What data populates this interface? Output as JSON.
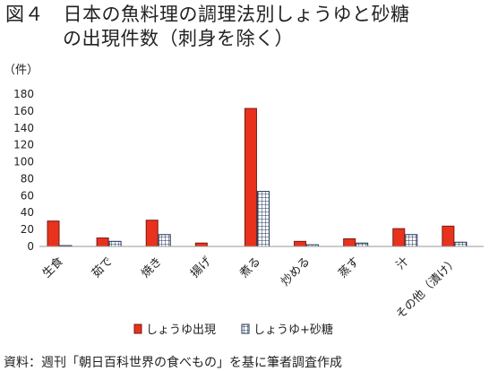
{
  "title_lines": [
    "図４　日本の魚料理の調理法別しょうゆと砂糖",
    "の出現件数（刺身を除く）"
  ],
  "source_note": "資料：週刊「朝日百科世界の食べもの」を基に筆者調査作成",
  "chart_data": {
    "type": "bar",
    "unit": "（件）",
    "categories": [
      "生食",
      "茹で",
      "焼き",
      "揚げ",
      "煮る",
      "炒める",
      "蒸す",
      "汁",
      "その他（漬け）"
    ],
    "series": [
      {
        "name": "しょうゆ出現",
        "color": "#e8321e",
        "pattern": "solid",
        "values": [
          30,
          10,
          31,
          4,
          163,
          6,
          9,
          21,
          24
        ]
      },
      {
        "name": "しょうゆ+砂糖",
        "color": "#1d3557",
        "pattern": "grid",
        "values": [
          1,
          6,
          14,
          0,
          65,
          2,
          4,
          14,
          5
        ]
      }
    ],
    "y_ticks": [
      0,
      20,
      40,
      60,
      80,
      100,
      120,
      140,
      160,
      180
    ],
    "ylim": [
      0,
      180
    ],
    "grid": false,
    "legend_position": "bottom"
  }
}
